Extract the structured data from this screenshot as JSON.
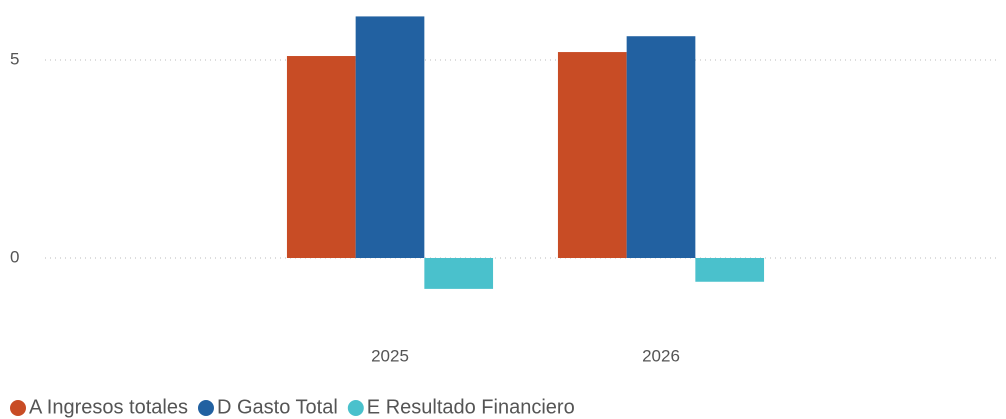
{
  "chart_data": {
    "type": "bar",
    "categories": [
      "2025",
      "2026"
    ],
    "series": [
      {
        "name": "A Ingresos totales",
        "color": "#c84c25",
        "values": [
          5.1,
          5.2
        ]
      },
      {
        "name": "D Gasto Total",
        "color": "#2261a1",
        "values": [
          6.1,
          5.6
        ]
      },
      {
        "name": "E Resultado Financiero",
        "color": "#4ac1cc",
        "values": [
          -0.78,
          -0.6
        ]
      }
    ],
    "ylim": [
      -1.5,
      6.3
    ],
    "yticks": [
      0,
      5
    ],
    "grid": true,
    "legend": "bottom"
  }
}
